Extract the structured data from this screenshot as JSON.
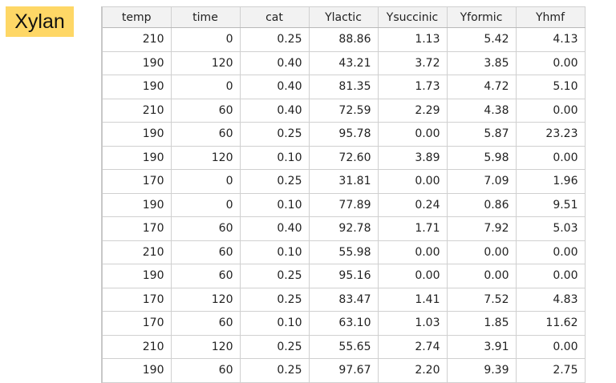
{
  "label": "Xylan",
  "table": {
    "columns": [
      "temp",
      "time",
      "cat",
      "Ylactic",
      "Ysuccinic",
      "Yformic",
      "Yhmf"
    ],
    "rows": [
      [
        "210",
        "0",
        "0.25",
        "88.86",
        "1.13",
        "5.42",
        "4.13"
      ],
      [
        "190",
        "120",
        "0.40",
        "43.21",
        "3.72",
        "3.85",
        "0.00"
      ],
      [
        "190",
        "0",
        "0.40",
        "81.35",
        "1.73",
        "4.72",
        "5.10"
      ],
      [
        "210",
        "60",
        "0.40",
        "72.59",
        "2.29",
        "4.38",
        "0.00"
      ],
      [
        "190",
        "60",
        "0.25",
        "95.78",
        "0.00",
        "5.87",
        "23.23"
      ],
      [
        "190",
        "120",
        "0.10",
        "72.60",
        "3.89",
        "5.98",
        "0.00"
      ],
      [
        "170",
        "0",
        "0.25",
        "31.81",
        "0.00",
        "7.09",
        "1.96"
      ],
      [
        "190",
        "0",
        "0.10",
        "77.89",
        "0.24",
        "0.86",
        "9.51"
      ],
      [
        "170",
        "60",
        "0.40",
        "92.78",
        "1.71",
        "7.92",
        "5.03"
      ],
      [
        "210",
        "60",
        "0.10",
        "55.98",
        "0.00",
        "0.00",
        "0.00"
      ],
      [
        "190",
        "60",
        "0.25",
        "95.16",
        "0.00",
        "0.00",
        "0.00"
      ],
      [
        "170",
        "120",
        "0.25",
        "83.47",
        "1.41",
        "7.52",
        "4.83"
      ],
      [
        "170",
        "60",
        "0.10",
        "63.10",
        "1.03",
        "1.85",
        "11.62"
      ],
      [
        "210",
        "120",
        "0.25",
        "55.65",
        "2.74",
        "3.91",
        "0.00"
      ],
      [
        "190",
        "60",
        "0.25",
        "97.67",
        "2.20",
        "9.39",
        "2.75"
      ]
    ]
  },
  "colors": {
    "label_bg": "#fed766",
    "header_bg": "#f2f2f2",
    "grid": "#d0d0d0"
  }
}
